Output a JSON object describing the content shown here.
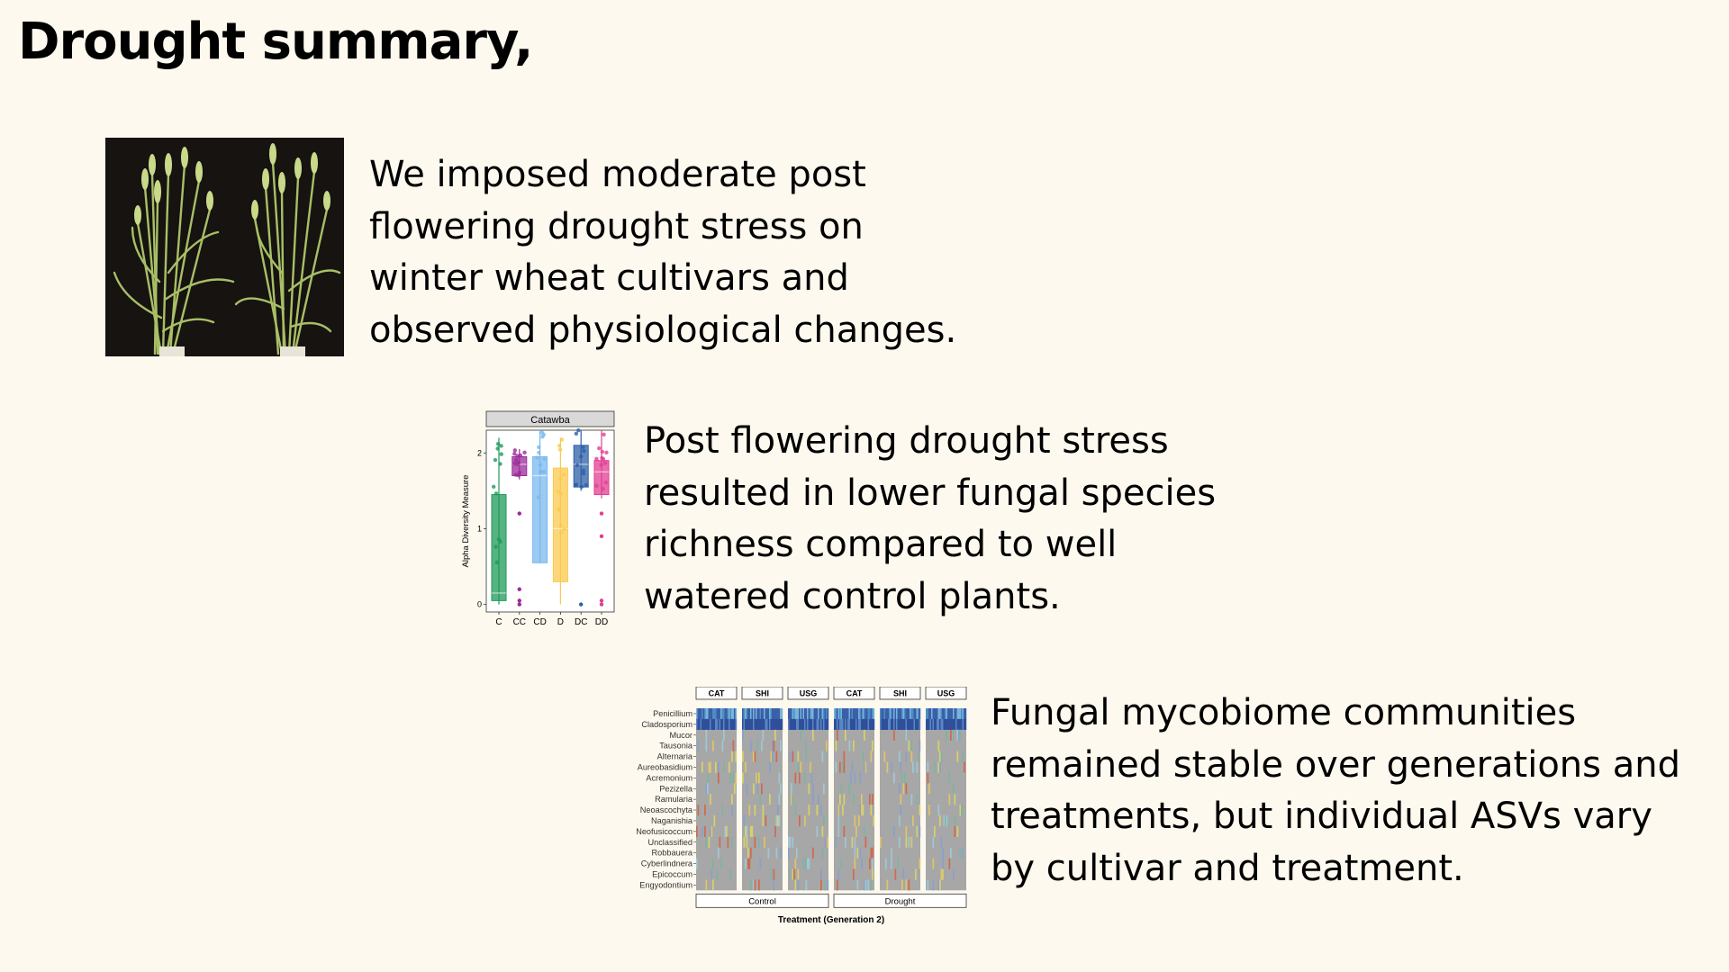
{
  "slide": {
    "title": "Drought summary,",
    "paragraphs": [
      "We imposed moderate post flowering drought stress on winter wheat cultivars and observed physiological changes.",
      "Post flowering drought stress resulted in lower fungal species richness compared to well watered control plants.",
      "Fungal mycobiome communities remained stable over generations and treatments, but individual ASVs vary by cultivar and treatment."
    ]
  },
  "colors": {
    "background": "#fdf9ef",
    "text": "#000000",
    "photo_background": "#161310",
    "wheat": "#9eb85a"
  },
  "chart_data": [
    {
      "type": "box",
      "panel_title": "Catawba",
      "xlabel": "",
      "ylabel": "Alpha Diversity Measure",
      "categories": [
        "C",
        "CC",
        "CD",
        "D",
        "DC",
        "DD"
      ],
      "colors": [
        "#1f9a5a",
        "#9b2a98",
        "#79b8ee",
        "#fbc94d",
        "#2d5fa6",
        "#e23e91"
      ],
      "ylim": [
        -0.1,
        2.3
      ],
      "yticks": [
        0,
        1,
        2
      ],
      "boxes": [
        {
          "min": 0.0,
          "q1": 0.05,
          "median": 0.15,
          "q3": 1.45,
          "max": 2.2
        },
        {
          "min": 1.65,
          "q1": 1.7,
          "median": 1.85,
          "q3": 1.95,
          "max": 2.05
        },
        {
          "min": 0.55,
          "q1": 0.55,
          "median": 1.7,
          "q3": 1.95,
          "max": 2.3
        },
        {
          "min": 0.0,
          "q1": 0.3,
          "median": 1.0,
          "q3": 1.8,
          "max": 2.2
        },
        {
          "min": 1.5,
          "q1": 1.55,
          "median": 1.85,
          "q3": 2.1,
          "max": 2.3
        },
        {
          "min": 1.4,
          "q1": 1.45,
          "median": 1.75,
          "q3": 1.9,
          "max": 2.3
        }
      ],
      "outliers": [
        {
          "category": "CC",
          "values": [
            1.2,
            0.2,
            0.05,
            0.0
          ]
        },
        {
          "category": "DC",
          "values": [
            0.0
          ]
        },
        {
          "category": "DD",
          "values": [
            1.2,
            0.9,
            0.05,
            0.0
          ]
        }
      ]
    },
    {
      "type": "heatmap",
      "facet_labels": [
        "CAT",
        "SHI",
        "USG",
        "CAT",
        "SHI",
        "USG"
      ],
      "group_labels": [
        "Control",
        "Drought"
      ],
      "xlabel": "Treatment (Generation 2)",
      "ylabel": "",
      "rows": [
        "Penicillium",
        "Cladosporium",
        "Mucor",
        "Tausonia",
        "Alternaria",
        "Aureobasidium",
        "Acremonium",
        "Pezizella",
        "Ramularia",
        "Neoascochyta",
        "Naganishia",
        "Neofusicoccum",
        "Unclassified",
        "Robbauera",
        "Cyberlindnera",
        "Epicoccum",
        "Engyodontium"
      ]
    }
  ]
}
